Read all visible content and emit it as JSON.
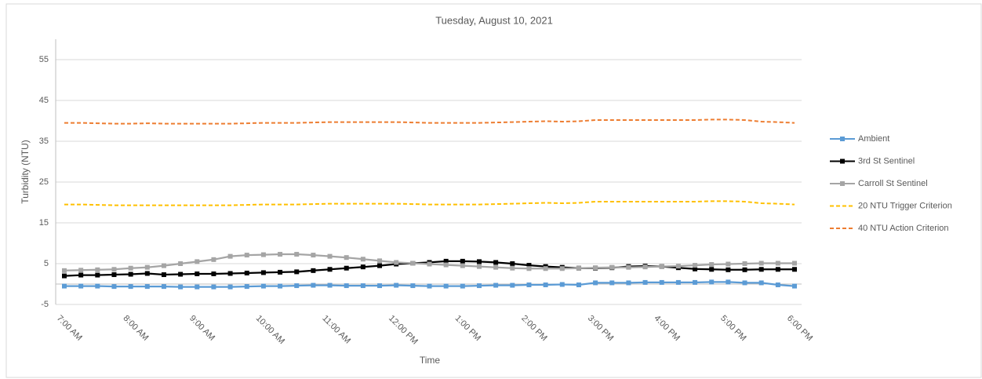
{
  "chart_data": {
    "type": "line",
    "title": "Tuesday, August 10, 2021",
    "y_label": "Turbidity (NTU)",
    "x_label": "Time",
    "categories": [
      "7:00 AM",
      null,
      null,
      null,
      "8:00 AM",
      null,
      null,
      null,
      "9:00 AM",
      null,
      null,
      null,
      "10:00 AM",
      null,
      null,
      null,
      "11:00 AM",
      null,
      null,
      null,
      "12:00 PM",
      null,
      null,
      null,
      "1:00 PM",
      null,
      null,
      null,
      "2:00 PM",
      null,
      null,
      null,
      "3:00 PM",
      null,
      null,
      null,
      "4:00 PM",
      null,
      null,
      null,
      "5:00 PM",
      null,
      null,
      null,
      "6:00 PM"
    ],
    "ylim": [
      -5,
      60
    ],
    "yticks": [
      -5,
      5,
      15,
      25,
      35,
      45,
      55
    ],
    "grid": true,
    "legend": "right",
    "series": [
      {
        "name": "Ambient",
        "color": "#5b9bd5",
        "markers": true,
        "dashed": false,
        "values": [
          -0.5,
          -0.5,
          -0.5,
          -0.6,
          -0.6,
          -0.6,
          -0.6,
          -0.7,
          -0.7,
          -0.7,
          -0.7,
          -0.6,
          -0.5,
          -0.5,
          -0.4,
          -0.3,
          -0.3,
          -0.4,
          -0.4,
          -0.4,
          -0.3,
          -0.4,
          -0.5,
          -0.5,
          -0.5,
          -0.4,
          -0.3,
          -0.3,
          -0.2,
          -0.2,
          -0.1,
          -0.2,
          0.3,
          0.3,
          0.3,
          0.4,
          0.4,
          0.4,
          0.4,
          0.5,
          0.5,
          0.3,
          0.3,
          -0.2,
          -0.5
        ]
      },
      {
        "name": "3rd St Sentinel",
        "color": "#000000",
        "markers": true,
        "dashed": false,
        "values": [
          2.0,
          2.2,
          2.2,
          2.3,
          2.4,
          2.6,
          2.3,
          2.4,
          2.5,
          2.5,
          2.6,
          2.7,
          2.8,
          2.9,
          3.0,
          3.3,
          3.6,
          3.9,
          4.2,
          4.5,
          4.9,
          5.1,
          5.3,
          5.6,
          5.6,
          5.5,
          5.3,
          5.0,
          4.6,
          4.3,
          4.1,
          3.9,
          3.9,
          4.0,
          4.3,
          4.4,
          4.3,
          4.0,
          3.7,
          3.6,
          3.5,
          3.5,
          3.6,
          3.6,
          3.6
        ]
      },
      {
        "name": "Carroll St Sentinel",
        "color": "#a5a5a5",
        "markers": true,
        "dashed": false,
        "values": [
          3.3,
          3.4,
          3.5,
          3.6,
          3.9,
          4.1,
          4.5,
          5.0,
          5.5,
          6.0,
          6.8,
          7.1,
          7.2,
          7.3,
          7.3,
          7.1,
          6.8,
          6.5,
          6.1,
          5.7,
          5.3,
          5.1,
          4.9,
          4.7,
          4.5,
          4.3,
          4.1,
          3.9,
          3.8,
          3.8,
          3.8,
          3.9,
          4.0,
          4.1,
          4.1,
          4.2,
          4.3,
          4.4,
          4.6,
          4.8,
          4.9,
          5.0,
          5.1,
          5.1,
          5.1
        ]
      },
      {
        "name": "20 NTU Trigger Criterion",
        "color": "#ffc000",
        "markers": false,
        "dashed": true,
        "values": [
          19.5,
          19.5,
          19.4,
          19.3,
          19.3,
          19.3,
          19.3,
          19.3,
          19.3,
          19.3,
          19.3,
          19.4,
          19.5,
          19.5,
          19.5,
          19.6,
          19.7,
          19.7,
          19.7,
          19.7,
          19.7,
          19.6,
          19.5,
          19.5,
          19.5,
          19.5,
          19.6,
          19.7,
          19.8,
          19.9,
          19.8,
          19.9,
          20.2,
          20.2,
          20.2,
          20.2,
          20.2,
          20.2,
          20.2,
          20.3,
          20.3,
          20.2,
          19.8,
          19.7,
          19.5
        ]
      },
      {
        "name": "40 NTU Action Criterion",
        "color": "#ed7d31",
        "markers": false,
        "dashed": true,
        "values": [
          39.5,
          39.5,
          39.4,
          39.3,
          39.3,
          39.4,
          39.3,
          39.3,
          39.3,
          39.3,
          39.3,
          39.4,
          39.5,
          39.5,
          39.5,
          39.6,
          39.7,
          39.7,
          39.7,
          39.7,
          39.7,
          39.6,
          39.5,
          39.5,
          39.5,
          39.5,
          39.6,
          39.7,
          39.8,
          39.9,
          39.8,
          39.9,
          40.2,
          40.2,
          40.2,
          40.2,
          40.2,
          40.2,
          40.2,
          40.3,
          40.3,
          40.2,
          39.8,
          39.7,
          39.5
        ]
      }
    ]
  }
}
